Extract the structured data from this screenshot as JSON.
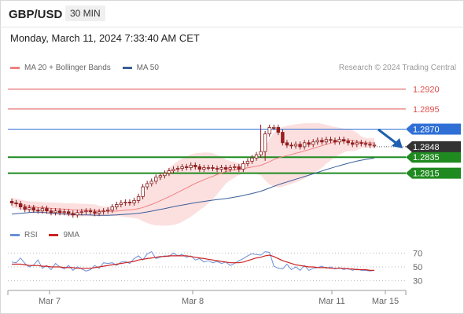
{
  "header": {
    "symbol": "GBP/USD",
    "timeframe": "30 MIN"
  },
  "date_line": "Monday, March 11, 2024 7:33:40 AM CET",
  "credit": "Research © 2024 Trading Central",
  "colors": {
    "ma20": "#f08080",
    "ma50": "#3b5e9a",
    "resistance": "#e05050",
    "pivot": "#2f6fd6",
    "support": "#1f8a1f",
    "price_box": "#333333",
    "rsi": "#6a8fd8",
    "rsi9": "#cc2222",
    "arrow": "#2060b0"
  },
  "chart_data": [
    {
      "type": "line",
      "title": "",
      "legend": [
        {
          "name": "MA 20 + Bollinger Bands",
          "color": "#f08080"
        },
        {
          "name": "MA 50",
          "color": "#3b5e9a"
        }
      ],
      "x_ticks": [
        "Mar 7",
        "Mar 8",
        "Mar 11",
        "Mar 15"
      ],
      "ylim": [
        1.2755,
        1.2935
      ],
      "levels": [
        {
          "value": 1.292,
          "label": "1.2920",
          "kind": "resistance"
        },
        {
          "value": 1.2895,
          "label": "1.2895",
          "kind": "resistance"
        },
        {
          "value": 1.287,
          "label": "1.2870",
          "kind": "pivot"
        },
        {
          "value": 1.2835,
          "label": "1.2835",
          "kind": "support"
        },
        {
          "value": 1.2815,
          "label": "1.2815",
          "kind": "support"
        }
      ],
      "last_price": {
        "value": 1.2848,
        "label": "1.2848"
      },
      "close": [
        1.2778,
        1.2777,
        1.2773,
        1.277,
        1.2772,
        1.2769,
        1.2768,
        1.2771,
        1.2768,
        1.2766,
        1.2768,
        1.2766,
        1.2767,
        1.2765,
        1.2763,
        1.2766,
        1.2767,
        1.2768,
        1.2767,
        1.2765,
        1.2767,
        1.2768,
        1.2769,
        1.2773,
        1.2776,
        1.2778,
        1.2779,
        1.2778,
        1.2781,
        1.2786,
        1.2798,
        1.2802,
        1.2805,
        1.281,
        1.2812,
        1.2815,
        1.2818,
        1.282,
        1.2821,
        1.2823,
        1.2822,
        1.2825,
        1.2823,
        1.282,
        1.2822,
        1.2822,
        1.2821,
        1.282,
        1.2822,
        1.282,
        1.2822,
        1.2823,
        1.282,
        1.2827,
        1.283,
        1.2834,
        1.2838,
        1.2842,
        1.2864,
        1.2872,
        1.2872,
        1.2866,
        1.2853,
        1.285,
        1.2849,
        1.2851,
        1.2848,
        1.2853,
        1.2851,
        1.2854,
        1.2856,
        1.2854,
        1.2857,
        1.2856,
        1.2854,
        1.2857,
        1.2855,
        1.2853,
        1.2851,
        1.2853,
        1.2852,
        1.2851,
        1.285,
        1.285
      ]
    },
    {
      "type": "line",
      "title": "",
      "legend": [
        {
          "name": "RSI",
          "color": "#6a8fd8"
        },
        {
          "name": "9MA",
          "color": "#cc2222"
        }
      ],
      "ylim": [
        25,
        75
      ],
      "y_ticks": [
        {
          "value": 70,
          "label": "70"
        },
        {
          "value": 50,
          "label": "50"
        },
        {
          "value": 30,
          "label": "30"
        }
      ],
      "rsi": [
        57,
        56,
        63,
        55,
        50,
        53,
        60,
        48,
        52,
        46,
        55,
        50,
        47,
        52,
        45,
        50,
        47,
        44,
        46,
        52,
        48,
        56,
        55,
        56,
        52,
        57,
        58,
        55,
        62,
        66,
        60,
        69,
        72,
        62,
        64,
        66,
        65,
        70,
        66,
        68,
        64,
        66,
        60,
        62,
        57,
        59,
        56,
        58,
        55,
        57,
        52,
        55,
        59,
        62,
        66,
        69,
        68,
        67,
        72,
        71,
        51,
        48,
        47,
        54,
        46,
        50,
        45,
        52,
        45,
        48,
        49,
        51,
        48,
        50,
        47,
        49,
        46,
        48,
        45,
        47,
        45,
        45,
        44,
        45
      ],
      "ma9": [
        54,
        54,
        54,
        53,
        52,
        52,
        52,
        51,
        51,
        50,
        50,
        50,
        49,
        49,
        49,
        48,
        48,
        48,
        48,
        49,
        50,
        51,
        52,
        53,
        54,
        55,
        56,
        57,
        58,
        60,
        61,
        62,
        63,
        64,
        65,
        65,
        66,
        66,
        66,
        66,
        66,
        65,
        64,
        63,
        62,
        61,
        60,
        59,
        58,
        57,
        56,
        56,
        56,
        57,
        59,
        61,
        63,
        64,
        66,
        67,
        65,
        62,
        59,
        57,
        55,
        53,
        52,
        51,
        50,
        50,
        49,
        49,
        49,
        48,
        48,
        48,
        48,
        47,
        47,
        46,
        46,
        46,
        45,
        45
      ]
    }
  ]
}
